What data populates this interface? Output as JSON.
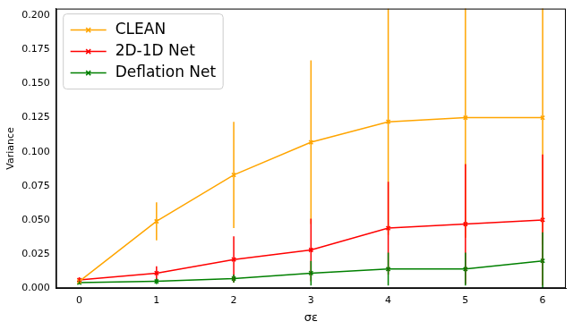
{
  "chart_data": {
    "type": "line",
    "x_label": "σε",
    "y_label": "Variance",
    "x": [
      0,
      1,
      2,
      3,
      4,
      5,
      6
    ],
    "series": [
      {
        "name": "CLEAN",
        "color": "#ffa500",
        "marker": "x",
        "line_style": "solid",
        "values": [
          0.005,
          0.049,
          0.083,
          0.107,
          0.122,
          0.125,
          0.125
        ],
        "errors": [
          0.002,
          0.014,
          0.039,
          0.06,
          0.083,
          0.088,
          0.093
        ]
      },
      {
        "name": "2D-1D Net",
        "color": "#ff0000",
        "marker": "x",
        "line_style": "solid",
        "values": [
          0.006,
          0.011,
          0.021,
          0.028,
          0.044,
          0.047,
          0.05
        ],
        "errors": [
          0.002,
          0.005,
          0.017,
          0.023,
          0.034,
          0.044,
          0.048
        ]
      },
      {
        "name": "Deflation Net",
        "color": "#008000",
        "marker": "x",
        "line_style": "solid",
        "values": [
          0.004,
          0.005,
          0.007,
          0.011,
          0.014,
          0.014,
          0.02
        ],
        "errors": [
          0.001,
          0.002,
          0.003,
          0.009,
          0.012,
          0.012,
          0.021
        ]
      }
    ],
    "xlim": [
      -0.3,
      6.3
    ],
    "xticks": [
      0,
      1,
      2,
      3,
      4,
      5,
      6
    ],
    "ylim": [
      0,
      0.205
    ],
    "yticks": [
      {
        "value": 0,
        "label": "0.000"
      },
      {
        "value": 0.025,
        "label": "0.025"
      },
      {
        "value": 0.05,
        "label": "0.050"
      },
      {
        "value": 0.075,
        "label": "0.075"
      },
      {
        "value": 0.1,
        "label": "0.100"
      },
      {
        "value": 0.125,
        "label": "0.125"
      },
      {
        "value": 0.15,
        "label": "0.150"
      },
      {
        "value": 0.175,
        "label": "0.175"
      },
      {
        "value": 0.2,
        "label": "0.200"
      }
    ],
    "grid": false,
    "legend": "upper left"
  }
}
